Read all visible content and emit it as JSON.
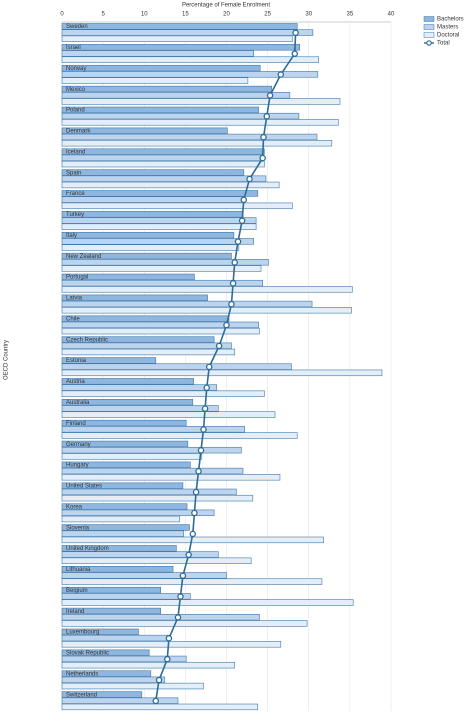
{
  "chart_data": {
    "type": "bar-line",
    "xlabel": "Percentage of Female Enrolment",
    "ylabel": "OECD Country",
    "categories": [
      "Sweden",
      "Israel",
      "Norway",
      "Mexico",
      "Poland",
      "Denmark",
      "Iceland",
      "Spain",
      "France",
      "Turkey",
      "Italy",
      "New Zealand",
      "Portugal",
      "Latvia",
      "Chile",
      "Czech Republic",
      "Estonia",
      "Austria",
      "Australia",
      "Finland",
      "Germany",
      "Hungary",
      "United States",
      "Korea",
      "Slovenia",
      "United Kingdom",
      "Lithuania",
      "Belgium",
      "Ireland",
      "Luxembourg",
      "Slovak Republic",
      "Netherlands",
      "Switzerland"
    ],
    "series": [
      {
        "name": "Bachelors",
        "kind": "bar",
        "color": "#8fb6de",
        "values": [
          28.6,
          28.9,
          24.1,
          25.5,
          23.9,
          20.1,
          24.6,
          22.1,
          23.8,
          22.0,
          20.9,
          20.6,
          16.1,
          17.7,
          20.3,
          18.5,
          11.4,
          16.0,
          15.9,
          15.1,
          15.3,
          15.6,
          14.7,
          15.2,
          15.5,
          13.9,
          13.5,
          12.0,
          12.0,
          9.3,
          10.6,
          10.8,
          9.7
        ]
      },
      {
        "name": "Masters",
        "kind": "bar",
        "color": "#bcd4ee",
        "values": [
          30.5,
          23.3,
          31.1,
          27.7,
          28.8,
          31.0,
          24.2,
          24.8,
          22.0,
          23.6,
          23.3,
          25.1,
          24.4,
          30.4,
          23.9,
          20.6,
          27.9,
          18.8,
          19.0,
          22.2,
          21.8,
          22.0,
          21.2,
          18.5,
          14.8,
          19.0,
          20.0,
          15.6,
          24.0,
          13.0,
          15.1,
          12.5,
          14.1
        ]
      },
      {
        "name": "Doctoral",
        "kind": "bar",
        "color": "#e3eef9",
        "values": [
          28.0,
          31.2,
          22.6,
          33.8,
          33.6,
          32.8,
          24.6,
          26.4,
          28.0,
          23.6,
          21.5,
          24.2,
          35.3,
          35.2,
          24.0,
          21.0,
          38.9,
          24.6,
          25.9,
          28.6,
          17.0,
          26.5,
          23.2,
          14.3,
          31.8,
          23.0,
          31.6,
          35.4,
          29.8,
          26.6,
          21.0,
          17.2,
          23.8
        ]
      },
      {
        "name": "Total",
        "kind": "line",
        "color": "#2e6b98",
        "values": [
          28.4,
          28.3,
          26.6,
          25.3,
          24.9,
          24.5,
          24.4,
          22.8,
          22.1,
          21.9,
          21.4,
          21.0,
          20.8,
          20.6,
          20.0,
          19.1,
          17.9,
          17.6,
          17.4,
          17.2,
          16.9,
          16.6,
          16.3,
          16.1,
          15.9,
          15.4,
          14.7,
          14.4,
          14.1,
          13.0,
          12.8,
          11.8,
          11.4
        ]
      }
    ],
    "xlim": [
      0,
      40
    ],
    "xticks": [
      0,
      5,
      10,
      15,
      20,
      25,
      30,
      35,
      40
    ],
    "grid": true,
    "legend": "top-right"
  }
}
